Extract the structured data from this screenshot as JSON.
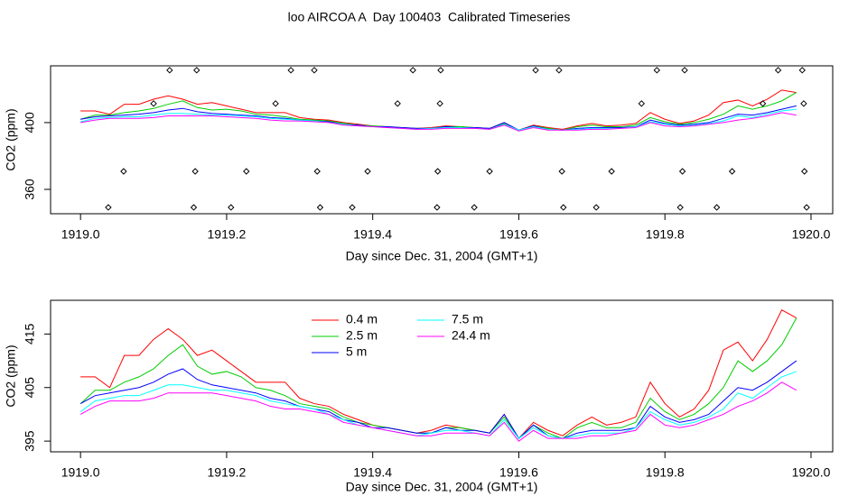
{
  "chart_data": [
    {
      "type": "line",
      "title": "loo AIRCOA A  Day 100403  Calibrated Timeseries",
      "xlabel": "Day since Dec. 31, 2004 (GMT+1)",
      "ylabel": "CO2 (ppm)",
      "xlim": [
        1918.959,
        1920.0297
      ],
      "xticks": [
        {
          "value": 1919,
          "label": "1919.0"
        },
        1919.2,
        1919.4,
        1919.6,
        1919.8,
        {
          "value": 1920,
          "label": "1920.0"
        }
      ],
      "ylim": [
        345.4,
        434
      ],
      "yticks": [
        360,
        400
      ],
      "x": [
        1919.0,
        1919.02,
        1919.04,
        1919.06,
        1919.08,
        1919.1,
        1919.12,
        1919.14,
        1919.16,
        1919.18,
        1919.2,
        1919.22,
        1919.24,
        1919.26,
        1919.28,
        1919.3,
        1919.32,
        1919.34,
        1919.36,
        1919.38,
        1919.4,
        1919.42,
        1919.44,
        1919.46,
        1919.48,
        1919.5,
        1919.52,
        1919.54,
        1919.56,
        1919.58,
        1919.6,
        1919.62,
        1919.64,
        1919.66,
        1919.68,
        1919.7,
        1919.72,
        1919.74,
        1919.76,
        1919.78,
        1919.8,
        1919.82,
        1919.84,
        1919.86,
        1919.88,
        1919.9,
        1919.92,
        1919.94,
        1919.96,
        1919.98
      ],
      "series": [
        {
          "name": "0.4 m",
          "color": "#ff0000",
          "values": [
            407,
            407,
            405,
            411,
            411,
            414,
            416,
            414,
            411,
            412,
            410,
            408,
            406,
            406,
            406,
            403,
            402,
            401.5,
            400,
            399,
            398,
            397.5,
            397,
            396.5,
            397,
            398,
            397.5,
            397,
            396.5,
            400,
            395.5,
            398.5,
            397,
            396,
            398,
            399.5,
            398,
            398.5,
            399.5,
            406,
            402,
            399.5,
            401,
            404.5,
            412,
            413.5,
            410,
            414,
            419.5,
            418
          ]
        },
        {
          "name": "2.5 m",
          "color": "#00cd00",
          "values": [
            402,
            404.5,
            404.5,
            406,
            407,
            408.5,
            411,
            413,
            409,
            407.5,
            408,
            407,
            405,
            404.5,
            403.5,
            402,
            401.5,
            401,
            399.5,
            398.5,
            398,
            397.5,
            397,
            396.5,
            396.5,
            397.5,
            397.5,
            397,
            396.5,
            399.5,
            395.5,
            398,
            396.5,
            395.5,
            397.5,
            398.5,
            397.5,
            397.5,
            398.5,
            403,
            400.5,
            399,
            400,
            402,
            405,
            410,
            408,
            410,
            413,
            418
          ]
        },
        {
          "name": "5 m",
          "color": "#0000ff",
          "values": [
            402,
            403.5,
            404,
            404.5,
            405,
            406,
            407.5,
            408.5,
            406.5,
            405.5,
            405,
            404.5,
            404,
            403,
            402.5,
            401.5,
            401,
            400.5,
            399,
            398.5,
            397.5,
            397.5,
            397,
            396.5,
            396.5,
            397.5,
            397,
            397,
            396.5,
            400,
            395.5,
            398,
            396,
            395.5,
            396.5,
            397,
            397,
            397,
            397.5,
            401.5,
            399.5,
            398.5,
            399,
            400,
            402.5,
            405,
            404.5,
            406,
            408,
            410
          ]
        },
        {
          "name": "7.5 m",
          "color": "#00ffff",
          "values": [
            400.5,
            402.5,
            403,
            403.5,
            403.5,
            404.5,
            405.5,
            405.5,
            405,
            404.5,
            404.5,
            404,
            403.5,
            402.5,
            402,
            401.5,
            401,
            400,
            399,
            398,
            397.5,
            397,
            396.5,
            396,
            396.5,
            397,
            397,
            396.5,
            396,
            399,
            395.5,
            397.5,
            396,
            395.5,
            396,
            396.5,
            396.5,
            396.5,
            397.5,
            400.5,
            399,
            398,
            398.5,
            399.5,
            401,
            404,
            403,
            405,
            407,
            408
          ]
        },
        {
          "name": "24.4 m",
          "color": "#ff00ff",
          "values": [
            400,
            401.5,
            402.5,
            402.5,
            402.5,
            403,
            404,
            404,
            404,
            404,
            403.5,
            403,
            402.5,
            401.5,
            401,
            401,
            400.5,
            400,
            398.5,
            398,
            397.5,
            397,
            396.5,
            396,
            396,
            396.5,
            396.5,
            396.5,
            396,
            398.5,
            395,
            397,
            395.5,
            395.5,
            395.5,
            396,
            396,
            396.5,
            397,
            400,
            398,
            397.5,
            398,
            399,
            400,
            401.5,
            402.5,
            404,
            406,
            404.5
          ]
        }
      ],
      "points": {
        "x": [
          1919.122,
          1919.159,
          1919.288,
          1919.32,
          1919.455,
          1919.493,
          1919.623,
          1919.655,
          1919.789,
          1919.827,
          1919.955,
          1919.988,
          1919.1,
          1919.267,
          1919.434,
          1919.492,
          1919.768,
          1919.934,
          1919.99,
          1919.059,
          1919.157,
          1919.227,
          1919.324,
          1919.393,
          1919.489,
          1919.56,
          1919.659,
          1919.727,
          1919.824,
          1919.892,
          1919.991,
          1919.038,
          1919.155,
          1919.206,
          1919.328,
          1919.372,
          1919.488,
          1919.539,
          1919.661,
          1919.706,
          1919.821,
          1919.871,
          1919.994
        ],
        "y": [
          431.4,
          431.4,
          431.4,
          431.4,
          431.4,
          431.4,
          431.4,
          431.4,
          431.4,
          431.4,
          431.4,
          431.4,
          411.4,
          411.4,
          411.4,
          411.4,
          411.4,
          411.4,
          411.4,
          370.8,
          370.8,
          370.8,
          370.8,
          370.8,
          370.8,
          370.8,
          370.8,
          370.8,
          370.8,
          370.8,
          370.8,
          349.2,
          349.2,
          349.2,
          349.2,
          349.2,
          349.2,
          349.2,
          349.2,
          349.2,
          349.2,
          349.2,
          349.2
        ],
        "color": "#000000"
      }
    },
    {
      "type": "line",
      "xlabel": "Day since Dec. 31, 2004 (GMT+1)",
      "ylabel": "CO2 (ppm)",
      "legend": "top",
      "xlim": [
        1918.959,
        1920.0297
      ],
      "xticks": [
        {
          "value": 1919,
          "label": "1919.0"
        },
        1919.2,
        1919.4,
        1919.6,
        1919.8,
        {
          "value": 1920,
          "label": "1920.0"
        }
      ],
      "ylim": [
        393,
        421.3
      ],
      "yticks": [
        395,
        405,
        415
      ],
      "x": [
        1919.0,
        1919.02,
        1919.04,
        1919.06,
        1919.08,
        1919.1,
        1919.12,
        1919.14,
        1919.16,
        1919.18,
        1919.2,
        1919.22,
        1919.24,
        1919.26,
        1919.28,
        1919.3,
        1919.32,
        1919.34,
        1919.36,
        1919.38,
        1919.4,
        1919.42,
        1919.44,
        1919.46,
        1919.48,
        1919.5,
        1919.52,
        1919.54,
        1919.56,
        1919.58,
        1919.6,
        1919.62,
        1919.64,
        1919.66,
        1919.68,
        1919.7,
        1919.72,
        1919.74,
        1919.76,
        1919.78,
        1919.8,
        1919.82,
        1919.84,
        1919.86,
        1919.88,
        1919.9,
        1919.92,
        1919.94,
        1919.96,
        1919.98
      ],
      "series": [
        {
          "name": "0.4 m",
          "color": "#ff0000",
          "values": [
            407,
            407,
            405,
            411,
            411,
            414,
            416,
            414,
            411,
            412,
            410,
            408,
            406,
            406,
            406,
            403,
            402,
            401.5,
            400,
            399,
            398,
            397.5,
            397,
            396.5,
            397,
            398,
            397.5,
            397,
            396.5,
            400,
            395.5,
            398.5,
            397,
            396,
            398,
            399.5,
            398,
            398.5,
            399.5,
            406,
            402,
            399.5,
            401,
            404.5,
            412,
            413.5,
            410,
            414,
            419.5,
            418
          ]
        },
        {
          "name": "2.5 m",
          "color": "#00cd00",
          "values": [
            402,
            404.5,
            404.5,
            406,
            407,
            408.5,
            411,
            413,
            409,
            407.5,
            408,
            407,
            405,
            404.5,
            403.5,
            402,
            401.5,
            401,
            399.5,
            398.5,
            398,
            397.5,
            397,
            396.5,
            396.5,
            397.5,
            397.5,
            397,
            396.5,
            399.5,
            395.5,
            398,
            396.5,
            395.5,
            397.5,
            398.5,
            397.5,
            397.5,
            398.5,
            403,
            400.5,
            399,
            400,
            402,
            405,
            410,
            408,
            410,
            413,
            418
          ]
        },
        {
          "name": "5 m",
          "color": "#0000ff",
          "values": [
            402,
            403.5,
            404,
            404.5,
            405,
            406,
            407.5,
            408.5,
            406.5,
            405.5,
            405,
            404.5,
            404,
            403,
            402.5,
            401.5,
            401,
            400.5,
            399,
            398.5,
            397.5,
            397.5,
            397,
            396.5,
            396.5,
            397.5,
            397,
            397,
            396.5,
            400,
            395.5,
            398,
            396,
            395.5,
            396.5,
            397,
            397,
            397,
            397.5,
            401.5,
            399.5,
            398.5,
            399,
            400,
            402.5,
            405,
            404.5,
            406,
            408,
            410
          ]
        },
        {
          "name": "7.5 m",
          "color": "#00ffff",
          "values": [
            400.5,
            402.5,
            403,
            403.5,
            403.5,
            404.5,
            405.5,
            405.5,
            405,
            404.5,
            404.5,
            404,
            403.5,
            402.5,
            402,
            401.5,
            401,
            400,
            399,
            398,
            397.5,
            397,
            396.5,
            396,
            396.5,
            397,
            397,
            396.5,
            396,
            399,
            395.5,
            397.5,
            396,
            395.5,
            396,
            396.5,
            396.5,
            396.5,
            397.5,
            400.5,
            399,
            398,
            398.5,
            399.5,
            401,
            404,
            403,
            405,
            407,
            408
          ]
        },
        {
          "name": "24.4 m",
          "color": "#ff00ff",
          "values": [
            400,
            401.5,
            402.5,
            402.5,
            402.5,
            403,
            404,
            404,
            404,
            404,
            403.5,
            403,
            402.5,
            401.5,
            401,
            401,
            400.5,
            400,
            398.5,
            398,
            397.5,
            397,
            396.5,
            396,
            396,
            396.5,
            396.5,
            396.5,
            396,
            398.5,
            395,
            397,
            395.5,
            395.5,
            395.5,
            396,
            396,
            396.5,
            397,
            400,
            398,
            397.5,
            398,
            399,
            400,
            401.5,
            402.5,
            404,
            406,
            404.5
          ]
        }
      ]
    }
  ]
}
